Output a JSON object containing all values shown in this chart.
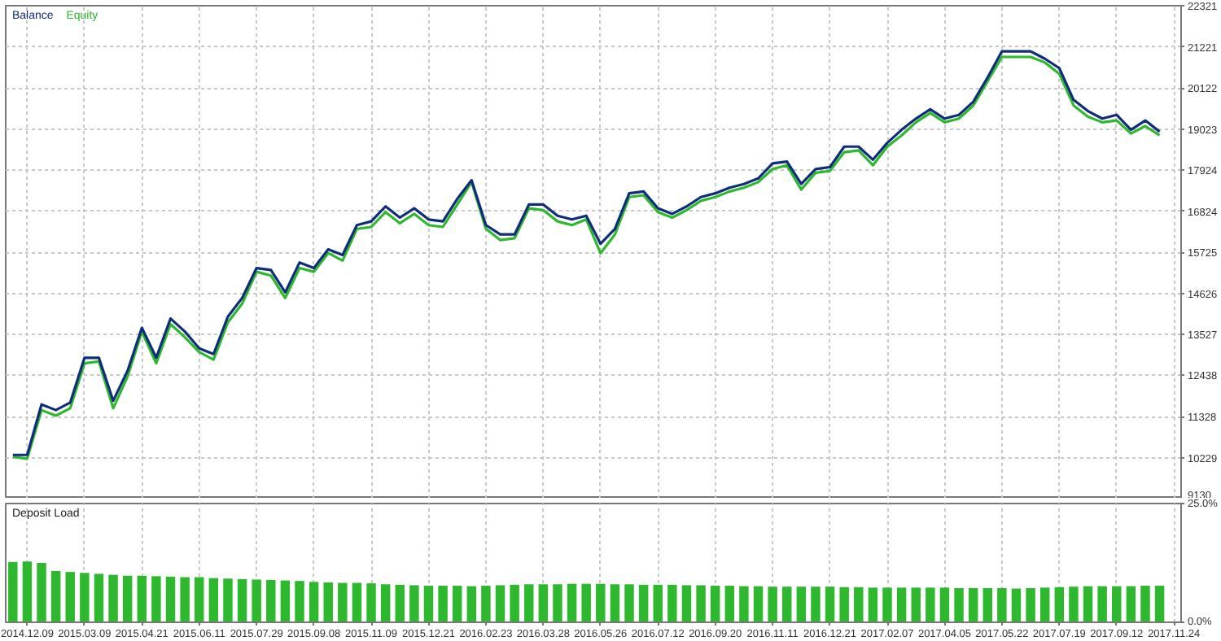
{
  "chart_data": [
    {
      "type": "line",
      "categories": [
        null,
        "2014.12.09",
        null,
        null,
        null,
        "2015.03.09",
        null,
        null,
        null,
        "2015.04.21",
        null,
        null,
        null,
        "2015.06.11",
        null,
        null,
        null,
        "2015.07.29",
        null,
        null,
        null,
        "2015.09.08",
        null,
        null,
        null,
        "2015.11.09",
        null,
        null,
        null,
        "2015.12.21",
        null,
        null,
        null,
        "2016.02.23",
        null,
        null,
        null,
        "2016.03.28",
        null,
        null,
        null,
        "2016.05.26",
        null,
        null,
        null,
        "2016.07.12",
        null,
        null,
        null,
        "2016.09.20",
        null,
        null,
        null,
        "2016.11.11",
        null,
        null,
        null,
        "2016.12.21",
        null,
        null,
        null,
        "2017.02.07",
        null,
        null,
        null,
        "2017.04.05",
        null,
        null,
        null,
        "2017.05.22",
        null,
        null,
        null,
        "2017.07.19",
        null,
        null,
        null,
        "2017.09.12",
        null,
        null,
        null,
        "2017.11.24"
      ],
      "ylim": [
        9130,
        22321
      ],
      "yticks": [
        9130,
        10229,
        11328,
        12438,
        13527,
        14626,
        15725,
        16824,
        17924,
        19023,
        20122,
        21221,
        22321
      ],
      "grid": true,
      "legend": "top left",
      "tick_labels": "y",
      "series": [
        {
          "name": "Equity",
          "color": "#2db82d",
          "values": [
            10250,
            10200,
            11500,
            11350,
            11550,
            12750,
            12800,
            11550,
            12400,
            13600,
            12750,
            13800,
            13450,
            13050,
            12850,
            13850,
            14350,
            15200,
            15100,
            14500,
            15300,
            15200,
            15700,
            15500,
            16350,
            16400,
            16800,
            16500,
            16750,
            16450,
            16400,
            17000,
            17600,
            16350,
            16050,
            16100,
            16900,
            16850,
            16550,
            16450,
            16600,
            15700,
            16200,
            17200,
            17250,
            16800,
            16650,
            16850,
            17100,
            17200,
            17350,
            17450,
            17600,
            17950,
            18050,
            17400,
            17850,
            17900,
            18400,
            18450,
            18050,
            18550,
            18850,
            19200,
            19450,
            19200,
            19300,
            19650,
            20300,
            20950,
            20950,
            20950,
            20800,
            20500,
            19650,
            19350,
            19200,
            19250,
            18900,
            19100,
            18850,
            null
          ]
        },
        {
          "name": "Balance",
          "color": "#0f2d7a",
          "values": [
            10300,
            10300,
            11650,
            11500,
            11700,
            12900,
            12900,
            11750,
            12550,
            13700,
            12900,
            13950,
            13600,
            13150,
            13000,
            14000,
            14500,
            15300,
            15250,
            14650,
            15450,
            15300,
            15800,
            15650,
            16450,
            16550,
            16950,
            16650,
            16900,
            16600,
            16550,
            17150,
            17650,
            16450,
            16200,
            16200,
            17000,
            17000,
            16700,
            16600,
            16700,
            15950,
            16350,
            17300,
            17350,
            16900,
            16750,
            16950,
            17200,
            17300,
            17450,
            17550,
            17700,
            18100,
            18150,
            17550,
            17950,
            18000,
            18550,
            18550,
            18200,
            18650,
            19000,
            19300,
            19550,
            19300,
            19400,
            19750,
            20400,
            21100,
            21100,
            21100,
            20900,
            20650,
            19800,
            19500,
            19300,
            19400,
            19000,
            19250,
            18950,
            null
          ]
        }
      ]
    },
    {
      "type": "bar",
      "title": "Deposit Load",
      "categories": [
        null,
        "2014.12.09",
        null,
        null,
        null,
        "2015.03.09",
        null,
        null,
        null,
        "2015.04.21",
        null,
        null,
        null,
        "2015.06.11",
        null,
        null,
        null,
        "2015.07.29",
        null,
        null,
        null,
        "2015.09.08",
        null,
        null,
        null,
        "2015.11.09",
        null,
        null,
        null,
        "2015.12.21",
        null,
        null,
        null,
        "2016.02.23",
        null,
        null,
        null,
        "2016.03.28",
        null,
        null,
        null,
        "2016.05.26",
        null,
        null,
        null,
        "2016.07.12",
        null,
        null,
        null,
        "2016.09.20",
        null,
        null,
        null,
        "2016.11.11",
        null,
        null,
        null,
        "2016.12.21",
        null,
        null,
        null,
        "2017.02.07",
        null,
        null,
        null,
        "2017.04.05",
        null,
        null,
        null,
        "2017.05.22",
        null,
        null,
        null,
        "2017.07.19",
        null,
        null,
        null,
        "2017.09.12",
        null,
        null,
        null,
        "2017.11.24"
      ],
      "ylim": [
        0,
        25
      ],
      "yticks": [
        {
          "value": 0,
          "label": "0.0%"
        },
        {
          "value": 25,
          "label": "25.0%"
        }
      ],
      "grid": "x",
      "color": "#2db82d",
      "values": [
        12.7,
        12.8,
        12.5,
        10.8,
        10.6,
        10.4,
        10.2,
        10.0,
        9.8,
        9.8,
        9.7,
        9.6,
        9.5,
        9.5,
        9.3,
        9.2,
        9.1,
        9.0,
        8.9,
        8.8,
        8.7,
        8.5,
        8.4,
        8.3,
        8.3,
        8.2,
        8.0,
        7.9,
        7.8,
        7.7,
        7.7,
        7.7,
        7.6,
        7.7,
        7.8,
        7.9,
        8.0,
        8.0,
        8.0,
        8.1,
        8.1,
        8.1,
        8.0,
        8.0,
        7.9,
        7.9,
        7.9,
        7.8,
        7.8,
        7.7,
        7.7,
        7.6,
        7.6,
        7.5,
        7.5,
        7.5,
        7.5,
        7.5,
        7.4,
        7.4,
        7.3,
        7.3,
        7.3,
        7.3,
        7.3,
        7.3,
        7.2,
        7.2,
        7.2,
        7.2,
        7.1,
        7.2,
        7.3,
        7.4,
        7.5,
        7.6,
        7.6,
        7.6,
        7.6,
        7.7,
        7.7,
        null
      ]
    }
  ]
}
